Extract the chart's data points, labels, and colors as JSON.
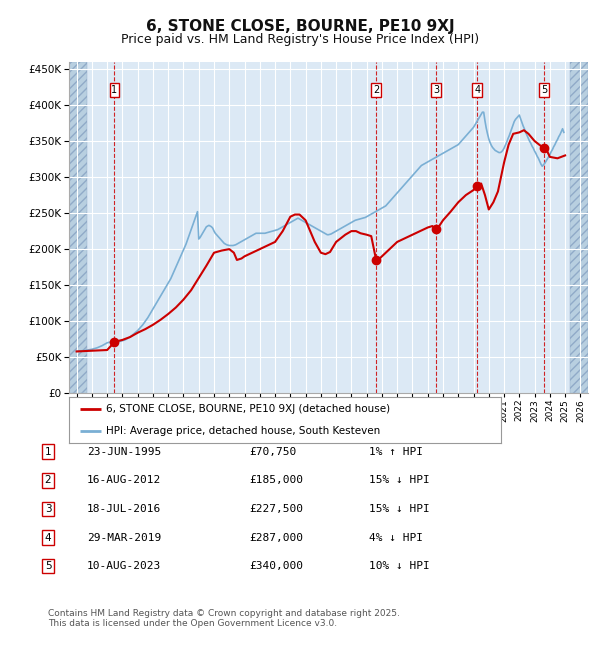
{
  "title": "6, STONE CLOSE, BOURNE, PE10 9XJ",
  "subtitle": "Price paid vs. HM Land Registry's House Price Index (HPI)",
  "title_fontsize": 11,
  "subtitle_fontsize": 9,
  "plot_bg_color": "#dce9f5",
  "hatch_color": "#b8cfe0",
  "grid_color": "#ffffff",
  "red_line_color": "#cc0000",
  "blue_line_color": "#7aafd4",
  "dashed_color": "#cc0000",
  "ylim": [
    0,
    460000
  ],
  "ytick_step": 50000,
  "xlim_start": 1992.5,
  "xlim_end": 2026.5,
  "footer_text": "Contains HM Land Registry data © Crown copyright and database right 2025.\nThis data is licensed under the Open Government Licence v3.0.",
  "legend_entries": [
    "6, STONE CLOSE, BOURNE, PE10 9XJ (detached house)",
    "HPI: Average price, detached house, South Kesteven"
  ],
  "transactions": [
    {
      "num": 1,
      "date": "23-JUN-1995",
      "price": "£70,750",
      "pct": "1%",
      "dir": "↑",
      "year": 1995.47,
      "price_val": 70750
    },
    {
      "num": 2,
      "date": "16-AUG-2012",
      "price": "£185,000",
      "pct": "15%",
      "dir": "↓",
      "year": 2012.62,
      "price_val": 185000
    },
    {
      "num": 3,
      "date": "18-JUL-2016",
      "price": "£227,500",
      "pct": "15%",
      "dir": "↓",
      "year": 2016.54,
      "price_val": 227500
    },
    {
      "num": 4,
      "date": "29-MAR-2019",
      "price": "£287,000",
      "pct": "4%",
      "dir": "↓",
      "year": 2019.24,
      "price_val": 287000
    },
    {
      "num": 5,
      "date": "10-AUG-2023",
      "price": "£340,000",
      "pct": "10%",
      "dir": "↓",
      "year": 2023.61,
      "price_val": 340000
    }
  ],
  "hpi_years": [
    1993.0,
    1993.083,
    1993.167,
    1993.25,
    1993.333,
    1993.417,
    1993.5,
    1993.583,
    1993.667,
    1993.75,
    1993.833,
    1993.917,
    1994.0,
    1994.083,
    1994.167,
    1994.25,
    1994.333,
    1994.417,
    1994.5,
    1994.583,
    1994.667,
    1994.75,
    1994.833,
    1994.917,
    1995.0,
    1995.083,
    1995.167,
    1995.25,
    1995.333,
    1995.417,
    1995.5,
    1995.583,
    1995.667,
    1995.75,
    1995.833,
    1995.917,
    1996.0,
    1996.083,
    1996.167,
    1996.25,
    1996.333,
    1996.417,
    1996.5,
    1996.583,
    1996.667,
    1996.75,
    1996.833,
    1996.917,
    1997.0,
    1997.083,
    1997.167,
    1997.25,
    1997.333,
    1997.417,
    1997.5,
    1997.583,
    1997.667,
    1997.75,
    1997.833,
    1997.917,
    1998.0,
    1998.083,
    1998.167,
    1998.25,
    1998.333,
    1998.417,
    1998.5,
    1998.583,
    1998.667,
    1998.75,
    1998.833,
    1998.917,
    1999.0,
    1999.083,
    1999.167,
    1999.25,
    1999.333,
    1999.417,
    1999.5,
    1999.583,
    1999.667,
    1999.75,
    1999.833,
    1999.917,
    2000.0,
    2000.083,
    2000.167,
    2000.25,
    2000.333,
    2000.417,
    2000.5,
    2000.583,
    2000.667,
    2000.75,
    2000.833,
    2000.917,
    2001.0,
    2001.083,
    2001.167,
    2001.25,
    2001.333,
    2001.417,
    2001.5,
    2001.583,
    2001.667,
    2001.75,
    2001.833,
    2001.917,
    2002.0,
    2002.083,
    2002.167,
    2002.25,
    2002.333,
    2002.417,
    2002.5,
    2002.583,
    2002.667,
    2002.75,
    2002.833,
    2002.917,
    2003.0,
    2003.083,
    2003.167,
    2003.25,
    2003.333,
    2003.417,
    2003.5,
    2003.583,
    2003.667,
    2003.75,
    2003.833,
    2003.917,
    2004.0,
    2004.083,
    2004.167,
    2004.25,
    2004.333,
    2004.417,
    2004.5,
    2004.583,
    2004.667,
    2004.75,
    2004.833,
    2004.917,
    2005.0,
    2005.083,
    2005.167,
    2005.25,
    2005.333,
    2005.417,
    2005.5,
    2005.583,
    2005.667,
    2005.75,
    2005.833,
    2005.917,
    2006.0,
    2006.083,
    2006.167,
    2006.25,
    2006.333,
    2006.417,
    2006.5,
    2006.583,
    2006.667,
    2006.75,
    2006.833,
    2006.917,
    2007.0,
    2007.083,
    2007.167,
    2007.25,
    2007.333,
    2007.417,
    2007.5,
    2007.583,
    2007.667,
    2007.75,
    2007.833,
    2007.917,
    2008.0,
    2008.083,
    2008.167,
    2008.25,
    2008.333,
    2008.417,
    2008.5,
    2008.583,
    2008.667,
    2008.75,
    2008.833,
    2008.917,
    2009.0,
    2009.083,
    2009.167,
    2009.25,
    2009.333,
    2009.417,
    2009.5,
    2009.583,
    2009.667,
    2009.75,
    2009.833,
    2009.917,
    2010.0,
    2010.083,
    2010.167,
    2010.25,
    2010.333,
    2010.417,
    2010.5,
    2010.583,
    2010.667,
    2010.75,
    2010.833,
    2010.917,
    2011.0,
    2011.083,
    2011.167,
    2011.25,
    2011.333,
    2011.417,
    2011.5,
    2011.583,
    2011.667,
    2011.75,
    2011.833,
    2011.917,
    2012.0,
    2012.083,
    2012.167,
    2012.25,
    2012.333,
    2012.417,
    2012.5,
    2012.583,
    2012.667,
    2012.75,
    2012.833,
    2012.917,
    2013.0,
    2013.083,
    2013.167,
    2013.25,
    2013.333,
    2013.417,
    2013.5,
    2013.583,
    2013.667,
    2013.75,
    2013.833,
    2013.917,
    2014.0,
    2014.083,
    2014.167,
    2014.25,
    2014.333,
    2014.417,
    2014.5,
    2014.583,
    2014.667,
    2014.75,
    2014.833,
    2014.917,
    2015.0,
    2015.083,
    2015.167,
    2015.25,
    2015.333,
    2015.417,
    2015.5,
    2015.583,
    2015.667,
    2015.75,
    2015.833,
    2015.917,
    2016.0,
    2016.083,
    2016.167,
    2016.25,
    2016.333,
    2016.417,
    2016.5,
    2016.583,
    2016.667,
    2016.75,
    2016.833,
    2016.917,
    2017.0,
    2017.083,
    2017.167,
    2017.25,
    2017.333,
    2017.417,
    2017.5,
    2017.583,
    2017.667,
    2017.75,
    2017.833,
    2017.917,
    2018.0,
    2018.083,
    2018.167,
    2018.25,
    2018.333,
    2018.417,
    2018.5,
    2018.583,
    2018.667,
    2018.75,
    2018.833,
    2018.917,
    2019.0,
    2019.083,
    2019.167,
    2019.25,
    2019.333,
    2019.417,
    2019.5,
    2019.583,
    2019.667,
    2019.75,
    2019.833,
    2019.917,
    2020.0,
    2020.083,
    2020.167,
    2020.25,
    2020.333,
    2020.417,
    2020.5,
    2020.583,
    2020.667,
    2020.75,
    2020.833,
    2020.917,
    2021.0,
    2021.083,
    2021.167,
    2021.25,
    2021.333,
    2021.417,
    2021.5,
    2021.583,
    2021.667,
    2021.75,
    2021.833,
    2021.917,
    2022.0,
    2022.083,
    2022.167,
    2022.25,
    2022.333,
    2022.417,
    2022.5,
    2022.583,
    2022.667,
    2022.75,
    2022.833,
    2022.917,
    2023.0,
    2023.083,
    2023.167,
    2023.25,
    2023.333,
    2023.417,
    2023.5,
    2023.583,
    2023.667,
    2023.75,
    2023.833,
    2023.917,
    2024.0,
    2024.083,
    2024.167,
    2024.25,
    2024.333,
    2024.417,
    2024.5,
    2024.583,
    2024.667,
    2024.75,
    2024.833,
    2024.917,
    2025.0
  ],
  "hpi_values": [
    58000,
    58200,
    58400,
    58600,
    58800,
    59000,
    59200,
    59500,
    59800,
    60100,
    60400,
    60700,
    61000,
    61500,
    62000,
    62500,
    63000,
    63800,
    64500,
    65200,
    66000,
    67000,
    68000,
    69000,
    70000,
    70500,
    70800,
    71000,
    71000,
    70800,
    70750,
    70800,
    71000,
    71500,
    72000,
    72500,
    73000,
    73500,
    74000,
    75000,
    76000,
    77000,
    78000,
    79500,
    81000,
    82500,
    84000,
    85500,
    87000,
    89000,
    91000,
    93000,
    95000,
    97500,
    100000,
    102500,
    105000,
    108000,
    111000,
    114000,
    117000,
    120000,
    123000,
    126000,
    129000,
    132000,
    135000,
    138000,
    141000,
    144000,
    147000,
    150000,
    153000,
    156000,
    159000,
    163000,
    167000,
    171000,
    175000,
    179000,
    183000,
    187000,
    191000,
    195000,
    199000,
    203000,
    207000,
    212000,
    217000,
    222000,
    227000,
    232000,
    237000,
    242000,
    247000,
    252000,
    214000,
    216000,
    219000,
    222000,
    225000,
    228000,
    231000,
    232000,
    233000,
    232000,
    231000,
    229000,
    225000,
    222000,
    220000,
    218000,
    216000,
    214000,
    212000,
    210000,
    208000,
    207000,
    206000,
    205500,
    205000,
    205000,
    205000,
    205000,
    205500,
    206000,
    207000,
    208000,
    209000,
    210000,
    211000,
    212000,
    213000,
    214000,
    215000,
    216000,
    217000,
    218000,
    219000,
    220000,
    221000,
    222000,
    222000,
    222000,
    222000,
    222000,
    222000,
    222000,
    222000,
    222500,
    223000,
    223500,
    224000,
    224500,
    225000,
    225500,
    226000,
    226500,
    227000,
    228000,
    229000,
    230000,
    231000,
    232000,
    233000,
    234000,
    235000,
    236000,
    237000,
    238000,
    239000,
    240000,
    241000,
    242000,
    243000,
    242000,
    241000,
    240000,
    239000,
    238000,
    237000,
    236000,
    235000,
    234000,
    233000,
    232000,
    231000,
    230000,
    229000,
    228000,
    227000,
    226000,
    225000,
    224000,
    223000,
    222000,
    221000,
    220000,
    220000,
    220500,
    221000,
    222000,
    223000,
    224000,
    225000,
    226000,
    227000,
    228000,
    229000,
    230000,
    231000,
    232000,
    233000,
    234000,
    235000,
    236000,
    237000,
    238000,
    239000,
    240000,
    240500,
    241000,
    241500,
    242000,
    242500,
    243000,
    243500,
    244000,
    245000,
    246000,
    247000,
    248000,
    249000,
    250000,
    251000,
    252000,
    253000,
    254000,
    255000,
    256000,
    257000,
    258000,
    259000,
    260000,
    262000,
    264000,
    266000,
    268000,
    270000,
    272000,
    274000,
    276000,
    278000,
    280000,
    282000,
    284000,
    286000,
    288000,
    290000,
    292000,
    294000,
    296000,
    298000,
    300000,
    302000,
    304000,
    306000,
    308000,
    310000,
    312000,
    314000,
    316000,
    317000,
    318000,
    319000,
    320000,
    321000,
    322000,
    323000,
    324000,
    325000,
    326000,
    327000,
    328000,
    329000,
    330000,
    331000,
    332000,
    333000,
    334000,
    335000,
    336000,
    337000,
    338000,
    339000,
    340000,
    341000,
    342000,
    343000,
    344000,
    345000,
    347000,
    349000,
    351000,
    353000,
    355000,
    357000,
    359000,
    361000,
    363000,
    365000,
    367000,
    369000,
    372000,
    375000,
    378000,
    381000,
    384000,
    387000,
    390000,
    390000,
    378000,
    368000,
    360000,
    353000,
    348000,
    344000,
    341000,
    339000,
    337000,
    336000,
    335000,
    334000,
    334000,
    335000,
    337000,
    340000,
    344000,
    348000,
    353000,
    357000,
    362000,
    367000,
    372000,
    377000,
    380000,
    382000,
    384000,
    386000,
    381000,
    376000,
    371000,
    367000,
    362000,
    358000,
    354000,
    350000,
    347000,
    343000,
    340000,
    336000,
    333000,
    329000,
    326000,
    322000,
    318000,
    315000,
    317000,
    319000,
    322000,
    325000,
    328000,
    331000,
    335000,
    338000,
    342000,
    345000,
    349000,
    352000,
    356000,
    359000,
    363000,
    367000,
    362000
  ],
  "price_years": [
    1993.0,
    1995.0,
    1995.47,
    1995.6,
    1996.0,
    1996.5,
    1997.0,
    1997.5,
    1998.0,
    1998.5,
    1999.0,
    1999.5,
    2000.0,
    2000.5,
    2001.0,
    2001.5,
    2002.0,
    2002.5,
    2003.0,
    2003.3,
    2003.5,
    2003.8,
    2004.0,
    2004.5,
    2005.0,
    2005.5,
    2006.0,
    2006.5,
    2007.0,
    2007.3,
    2007.6,
    2008.0,
    2008.3,
    2008.6,
    2009.0,
    2009.3,
    2009.6,
    2010.0,
    2010.3,
    2010.6,
    2011.0,
    2011.3,
    2011.6,
    2012.0,
    2012.3,
    2012.62,
    2012.75,
    2013.0,
    2013.5,
    2014.0,
    2014.5,
    2015.0,
    2015.5,
    2016.0,
    2016.3,
    2016.54,
    2016.75,
    2017.0,
    2017.5,
    2018.0,
    2018.5,
    2019.0,
    2019.24,
    2019.5,
    2019.75,
    2020.0,
    2020.3,
    2020.6,
    2021.0,
    2021.3,
    2021.6,
    2022.0,
    2022.3,
    2022.6,
    2023.0,
    2023.3,
    2023.61,
    2023.8,
    2024.0,
    2024.5,
    2025.0
  ],
  "price_values": [
    58000,
    60000,
    70750,
    72000,
    74000,
    78000,
    84000,
    89000,
    95000,
    102000,
    110000,
    119000,
    130000,
    143000,
    160000,
    177000,
    195000,
    198000,
    200000,
    195000,
    185000,
    187000,
    190000,
    195000,
    200000,
    205000,
    210000,
    225000,
    245000,
    248000,
    248000,
    240000,
    225000,
    210000,
    195000,
    193000,
    196000,
    210000,
    215000,
    220000,
    225000,
    225000,
    222000,
    220000,
    218000,
    185000,
    185000,
    190000,
    200000,
    210000,
    215000,
    220000,
    225000,
    230000,
    232000,
    227500,
    232000,
    240000,
    252000,
    265000,
    275000,
    282000,
    287000,
    291000,
    275000,
    255000,
    265000,
    280000,
    320000,
    345000,
    360000,
    362000,
    365000,
    360000,
    350000,
    345000,
    340000,
    337000,
    328000,
    326000,
    330000
  ]
}
